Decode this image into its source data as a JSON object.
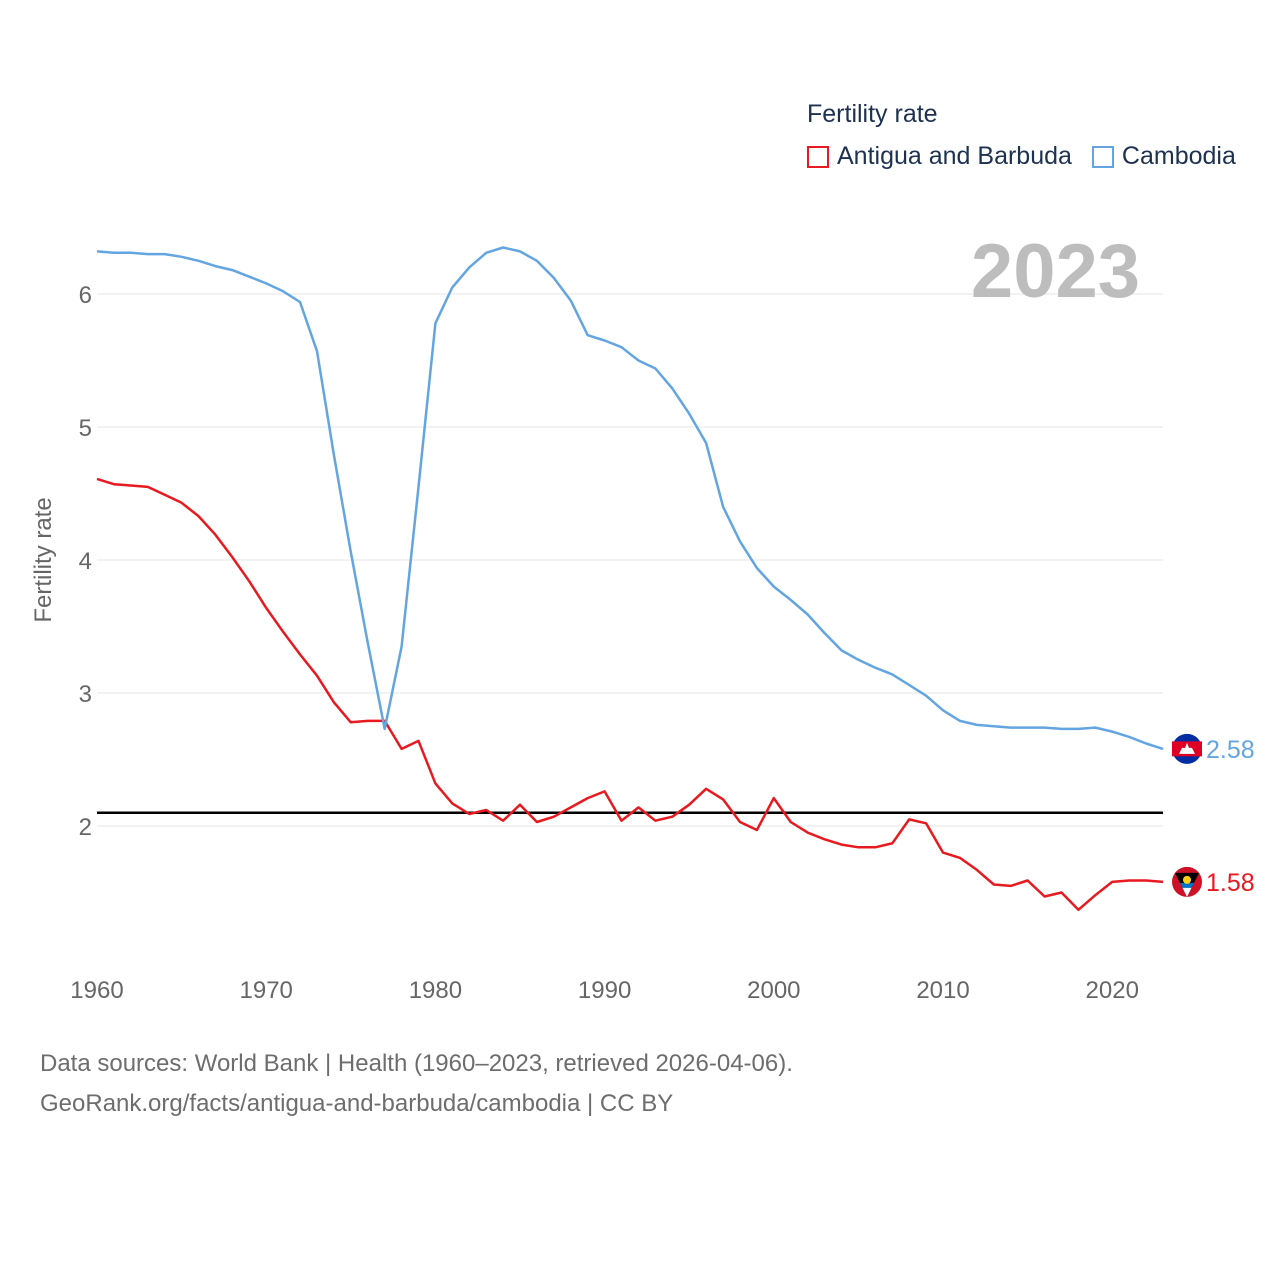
{
  "legend": {
    "title": "Fertility rate",
    "items": [
      {
        "name": "Antigua and Barbuda",
        "color": "#e8191f"
      },
      {
        "name": "Cambodia",
        "color": "#63a5e0"
      }
    ]
  },
  "year_label": "2023",
  "footer": {
    "line1": "Data sources: World Bank | Health (1960–2023, retrieved 2026-04-06).",
    "line2": "GeoRank.org/facts/antigua-and-barbuda/cambodia | CC BY"
  },
  "chart_data": {
    "type": "line",
    "title": "Fertility rate",
    "xlabel": "",
    "ylabel": "Fertility rate",
    "xlim": [
      1960,
      2023
    ],
    "ylim": [
      1.0,
      6.6
    ],
    "x_ticks": [
      1960,
      1970,
      1980,
      1990,
      2000,
      2010,
      2020
    ],
    "y_ticks": [
      2,
      3,
      4,
      5,
      6
    ],
    "reference_line": 2.1,
    "x": [
      1960,
      1961,
      1962,
      1963,
      1964,
      1965,
      1966,
      1967,
      1968,
      1969,
      1970,
      1971,
      1972,
      1973,
      1974,
      1975,
      1976,
      1977,
      1978,
      1979,
      1980,
      1981,
      1982,
      1983,
      1984,
      1985,
      1986,
      1987,
      1988,
      1989,
      1990,
      1991,
      1992,
      1993,
      1994,
      1995,
      1996,
      1997,
      1998,
      1999,
      2000,
      2001,
      2002,
      2003,
      2004,
      2005,
      2006,
      2007,
      2008,
      2009,
      2010,
      2011,
      2012,
      2013,
      2014,
      2015,
      2016,
      2017,
      2018,
      2019,
      2020,
      2021,
      2022,
      2023
    ],
    "series": [
      {
        "name": "Antigua and Barbuda",
        "color": "#e8191f",
        "end_label": "1.58",
        "values": [
          4.61,
          4.57,
          4.56,
          4.55,
          4.49,
          4.43,
          4.33,
          4.19,
          4.02,
          3.84,
          3.64,
          3.46,
          3.29,
          3.13,
          2.93,
          2.78,
          2.79,
          2.79,
          2.58,
          2.64,
          2.32,
          2.17,
          2.09,
          2.12,
          2.04,
          2.16,
          2.03,
          2.07,
          2.14,
          2.21,
          2.26,
          2.04,
          2.14,
          2.04,
          2.07,
          2.16,
          2.28,
          2.2,
          2.03,
          1.97,
          2.21,
          2.03,
          1.95,
          1.9,
          1.86,
          1.84,
          1.84,
          1.87,
          2.05,
          2.02,
          1.8,
          1.76,
          1.67,
          1.56,
          1.55,
          1.59,
          1.47,
          1.5,
          1.37,
          1.48,
          1.58,
          1.59,
          1.59,
          1.58
        ]
      },
      {
        "name": "Cambodia",
        "color": "#63a5e0",
        "end_label": "2.58",
        "values": [
          6.32,
          6.31,
          6.31,
          6.3,
          6.3,
          6.28,
          6.25,
          6.21,
          6.18,
          6.13,
          6.08,
          6.02,
          5.94,
          5.57,
          4.79,
          4.06,
          3.38,
          2.73,
          3.35,
          4.55,
          5.78,
          6.05,
          6.2,
          6.31,
          6.35,
          6.32,
          6.25,
          6.12,
          5.95,
          5.69,
          5.65,
          5.6,
          5.5,
          5.44,
          5.29,
          5.1,
          4.88,
          4.4,
          4.14,
          3.94,
          3.8,
          3.7,
          3.59,
          3.45,
          3.32,
          3.25,
          3.19,
          3.14,
          3.06,
          2.98,
          2.87,
          2.79,
          2.76,
          2.75,
          2.74,
          2.74,
          2.74,
          2.73,
          2.73,
          2.74,
          2.71,
          2.67,
          2.62,
          2.58
        ]
      }
    ]
  }
}
